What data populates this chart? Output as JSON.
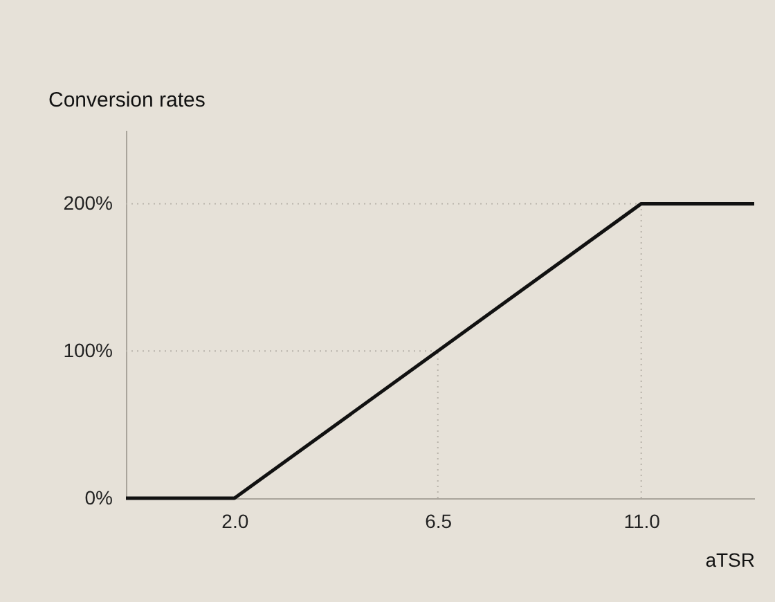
{
  "chart_data": {
    "type": "line",
    "title": "Conversion rates",
    "xlabel": "aTSR",
    "x": [
      -0.4,
      2.0,
      6.5,
      11.0,
      13.5
    ],
    "series": [
      {
        "color": "#111111",
        "values": [
          0,
          0,
          100,
          200,
          200
        ]
      }
    ],
    "xlim": [
      -0.4,
      13.5
    ],
    "ylim": [
      0,
      250
    ],
    "xticks": [
      {
        "value": 2.0,
        "label": "2.0"
      },
      {
        "value": 6.5,
        "label": "6.5"
      },
      {
        "value": 11.0,
        "label": "11.0"
      }
    ],
    "yticks": [
      {
        "value": 0,
        "label": "0%"
      },
      {
        "value": 100,
        "label": "100%"
      },
      {
        "value": 200,
        "label": "200%"
      }
    ],
    "ref_lines": [
      {
        "axis": "y",
        "value": 100,
        "color": "#b8b3aa",
        "line_style": "dotted"
      },
      {
        "axis": "y",
        "value": 200,
        "color": "#b8b3aa",
        "line_style": "dotted"
      },
      {
        "axis": "x",
        "value": 6.5,
        "color": "#b8b3aa",
        "line_style": "dotted"
      },
      {
        "axis": "x",
        "value": 11.0,
        "color": "#b8b3aa",
        "line_style": "dotted"
      }
    ],
    "grid": false,
    "marker": "none",
    "line_style": "solid"
  }
}
